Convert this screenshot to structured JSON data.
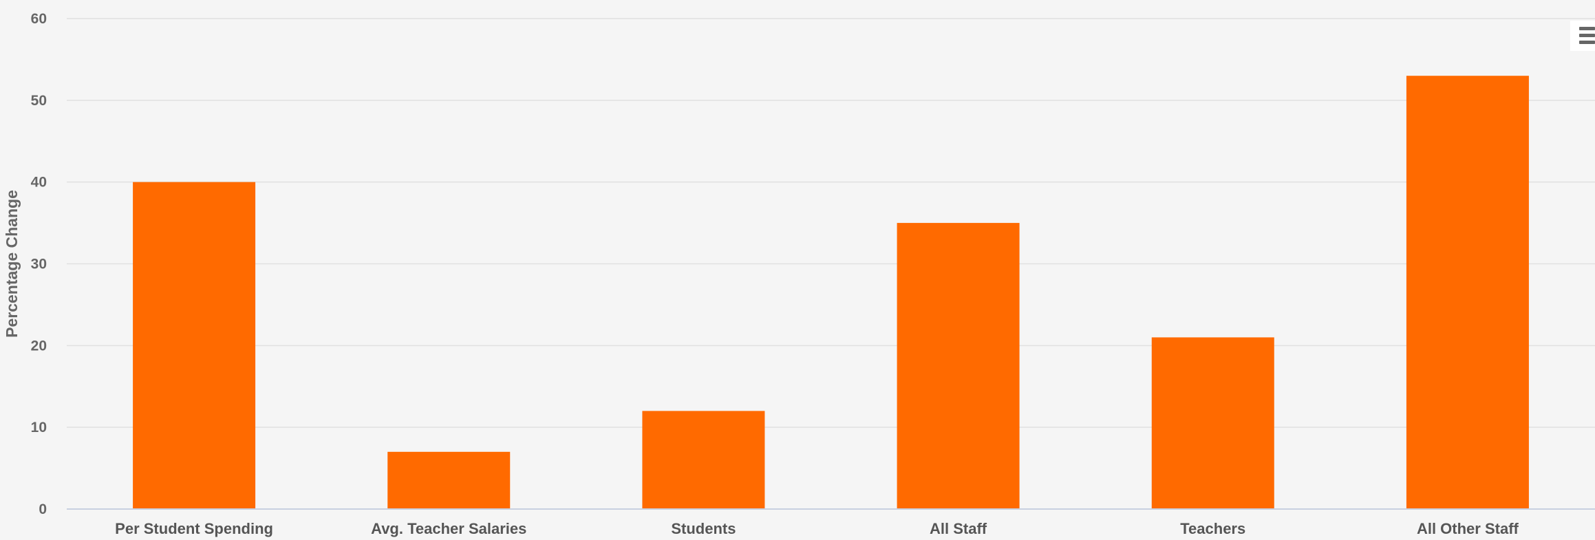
{
  "chart_data": {
    "type": "bar",
    "title": "",
    "xlabel": "",
    "ylabel": "Percentage Change",
    "categories": [
      "Per Student Spending",
      "Avg. Teacher Salaries",
      "Students",
      "All Staff",
      "Teachers",
      "All Other Staff"
    ],
    "series": [
      {
        "values": [
          40,
          7,
          12,
          35,
          21,
          53
        ]
      }
    ],
    "ylim": [
      0,
      60
    ],
    "yticks": [
      0,
      10,
      20,
      30,
      40,
      50,
      60
    ],
    "grid": true,
    "legend": "none",
    "bar_color": "#ff6a00"
  },
  "toolbar": {
    "menu_icon": "hamburger-menu-icon"
  }
}
